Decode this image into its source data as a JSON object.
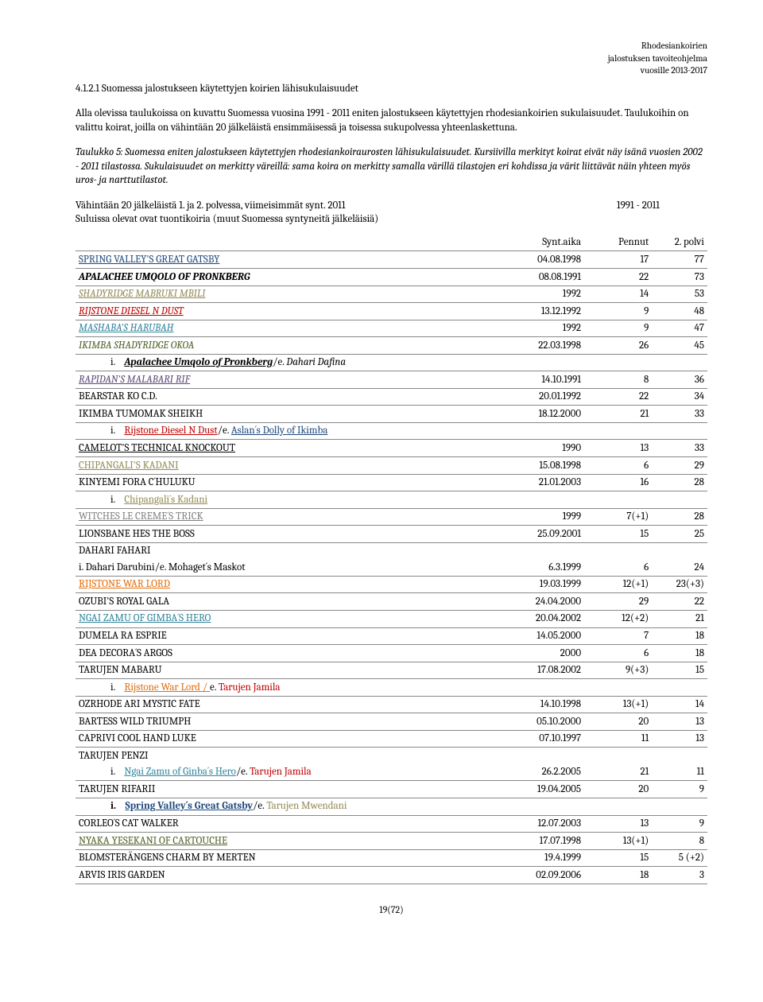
{
  "header": {
    "l1": "Rhodesiankoirien",
    "l2": "jalostuksen tavoiteohjelma",
    "l3": "vuosille 2013-2017"
  },
  "section_number": "4.1.2.1 Suomessa jalostukseen käytettyjen koirien lähisukulaisuudet",
  "para1": "Alla olevissa taulukoissa on kuvattu Suomessa vuosina 1991 - 2011 eniten jalostukseen käytettyjen rhodesiankoirien sukulaisuudet. Taulukoihin on valittu koirat, joilla on vähintään 20 jälkeläistä ensimmäisessä ja toisessa sukupolvessa yhteenlaskettuna.",
  "para2": "Taulukko 5: Suomessa eniten jalostukseen käytettyjen rhodesiankoiraurosten lähisukulaisuudet. Kursiivilla merkityt koirat eivät näy isänä vuosien 2002 - 2011 tilastossa. Sukulaisuudet on merkitty väreillä: sama koira on merkitty samalla värillä tilastojen eri kohdissa ja värit liittävät näin yhteen myös uros- ja narttutilastot.",
  "para3a": "Vähintään 20 jälkeläistä 1. ja 2. polvessa, viimeisimmät synt. 2011",
  "para3b": "1991 - 2011",
  "para4": "Suluissa olevat ovat tuontikoiria (muut Suomessa syntyneitä jälkeläisiä)",
  "columns": {
    "c1": "Synt.aika",
    "c2": "Pennut",
    "c3": "2.  polvi"
  },
  "rows": [
    {
      "name": "SPRING VALLEY'S GREAT GATSBY",
      "date": "04.08.1998",
      "p": "17",
      "g": "77",
      "cls": "underline c-blue"
    },
    {
      "name": "APALACHEE UMQOLO OF PRONKBERG",
      "date": "08.08.1991",
      "p": "22",
      "g": "73",
      "cls": "italic bold"
    },
    {
      "name": "SHADYRIDGE MABRUKI MBILI",
      "date": "1992",
      "p": "14",
      "g": "53",
      "cls": "italic c-olive underline"
    },
    {
      "name": "RIJSTONE DIESEL N DUST",
      "date": "13.12.1992",
      "p": "9",
      "g": "48",
      "cls": "italic c-red underline"
    },
    {
      "name": "MASHABA'S HARUBAH",
      "date": "1992",
      "p": "9",
      "g": "47",
      "cls": "italic c-teal underline"
    },
    {
      "name": "IKIMBA SHADYRIDGE OKOA",
      "date": "22.03.1998",
      "p": "26",
      "g": "45",
      "cls": "italic c-green"
    },
    {
      "sub": true,
      "roman": "i.",
      "t1": "Apalachee Umqolo of Pronkberg",
      "t1cls": "italic bold underline",
      "sep": "/e. ",
      "t2": "Dahari Dafina",
      "t2cls": "italic"
    },
    {
      "name": "RAPIDAN'S MALABARI RIF",
      "date": "14.10.1991",
      "p": "8",
      "g": "36",
      "cls": "italic c-purple underline"
    },
    {
      "name": "BEARSTAR KO C.D.",
      "date": "20.01.1992",
      "p": "22",
      "g": "34",
      "cls": ""
    },
    {
      "name": "IKIMBA TUMOMAK SHEIKH",
      "date": "18.12.2000",
      "p": "21",
      "g": "33",
      "cls": ""
    },
    {
      "sub": true,
      "roman": "i.",
      "t1": "Rijstone Diesel N Dust",
      "t1cls": "c-red underline",
      "sep": "/e. ",
      "t2": "Aslan´s Dolly of Ikimba",
      "t2cls": "c-blue underline"
    },
    {
      "name": "CAMELOT'S TECHNICAL KNOCKOUT",
      "date": "1990",
      "p": "13",
      "g": "33",
      "cls": "underline"
    },
    {
      "name": "CHIPANGALI'S KADANI",
      "date": "15.08.1998",
      "p": "6",
      "g": "29",
      "cls": "c-olive underline"
    },
    {
      "name": "KINYEMI FORA C´HULUKU",
      "date": "21.01.2003",
      "p": "16",
      "g": "28",
      "cls": ""
    },
    {
      "sub": true,
      "roman": "i.",
      "t1": "Chipangali´s Kadani",
      "t1cls": "c-olive underline",
      "sep": "",
      "t2": "",
      "t2cls": ""
    },
    {
      "name": "WITCHES LE CREME´S TRICK",
      "date": "1999",
      "p": "7(+1)",
      "g": "28",
      "cls": "c-gray underline"
    },
    {
      "name": "LIONSBANE HES THE BOSS",
      "date": "25.09.2001",
      "p": "15",
      "g": "25",
      "cls": ""
    },
    {
      "name": "DAHARI FAHARI",
      "date": "",
      "p": "",
      "g": "",
      "cls": "",
      "noborder": true
    },
    {
      "sub": true,
      "plain": "i. Dahari Darubini/e. Mohaget´s Maskot",
      "date": "6.3.1999",
      "p": "6",
      "g": "24",
      "indent": false
    },
    {
      "name": "RIJSTONE WAR LORD",
      "date": "19.03.1999",
      "p": "12(+1)",
      "g": "23(+3)",
      "cls": "c-orange underline"
    },
    {
      "name": "OZUBI'S ROYAL GALA",
      "date": "24.04.2000",
      "p": "29",
      "g": "22",
      "cls": ""
    },
    {
      "name": "NGAI ZAMU OF GIMBA´S HERO",
      "date": "20.04.2002",
      "p": "12(+2)",
      "g": "21",
      "cls": "c-teal underline"
    },
    {
      "name": "DUMELA RA ESPRIE",
      "date": "14.05.2000",
      "p": "7",
      "g": "18",
      "cls": ""
    },
    {
      "name": "DEA DECORA´S ARGOS",
      "date": "2000",
      "p": "6",
      "g": "18",
      "cls": ""
    },
    {
      "name": "TARUJEN MABARU",
      "date": "17.08.2002",
      "p": "9(+3)",
      "g": "15",
      "cls": ""
    },
    {
      "sub": true,
      "roman": "i.",
      "t1": "Rijstone War Lord / ",
      "t1cls": "c-orange underline",
      "sep": "e. ",
      "t2": "Tarujen Jamila",
      "t2cls": "c-red"
    },
    {
      "name": "OZRHODE ARI MYSTIC FATE",
      "date": "14.10.1998",
      "p": "13(+1)",
      "g": "14",
      "cls": ""
    },
    {
      "name": "BARTESS WILD TRIUMPH",
      "date": "05.10.2000",
      "p": "20",
      "g": "13",
      "cls": ""
    },
    {
      "name": "CAPRIVI COOL HAND LUKE",
      "date": "07.10.1997",
      "p": "11",
      "g": "13",
      "cls": ""
    },
    {
      "name": "TARUJEN PENZI",
      "date": "",
      "p": "",
      "g": "",
      "cls": "",
      "noborder": true
    },
    {
      "sub": true,
      "roman": "i.",
      "t1": "Ngai Zamu of Ginba´s Hero",
      "t1cls": "c-teal underline",
      "sep": "/e.  ",
      "t2": "Tarujen Jamila",
      "t2cls": "c-red",
      "date": "26.2.2005",
      "p": "21",
      "g": "11"
    },
    {
      "name": "TARUJEN RIFARII",
      "date": "19.04.2005",
      "p": "20",
      "g": "9",
      "cls": ""
    },
    {
      "sub": true,
      "roman": "i.",
      "bold": true,
      "t1": "Spring Valley´s Great Gatsby",
      "t1cls": "c-blue underline bold",
      "sep": "/e. ",
      "t2": "Tarujen Mwendani",
      "t2cls": "c-olive"
    },
    {
      "name": "CORLEO´S CAT WALKER",
      "date": "12.07.2003",
      "p": "13",
      "g": "9",
      "cls": ""
    },
    {
      "name": "NYAKA YESEKANI OF CARTOUCHE",
      "date": "17.07.1998",
      "p": "13(+1)",
      "g": "8",
      "cls": "c-green underline"
    },
    {
      "name": "BLOMSTERÄNGENS CHARM BY MERTEN",
      "date": "19.4.1999",
      "p": "15",
      "g": "5 (+2)",
      "cls": ""
    },
    {
      "name": "ARVIS IRIS GARDEN",
      "date": "02.09.2006",
      "p": "18",
      "g": "3",
      "cls": ""
    }
  ],
  "footer": "19(72)"
}
